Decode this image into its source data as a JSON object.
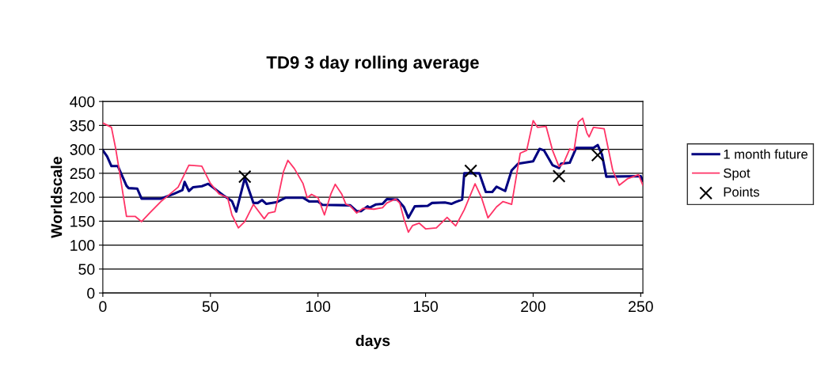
{
  "chart_data": {
    "type": "line",
    "title": "TD9 3 day rolling average",
    "xlabel": "days",
    "ylabel": "Worldscale",
    "xlim": [
      0,
      251
    ],
    "xticks": [
      0,
      50,
      100,
      150,
      200,
      250
    ],
    "ylim": [
      0,
      400
    ],
    "yticks": [
      0,
      50,
      100,
      150,
      200,
      250,
      300,
      350,
      400
    ],
    "grid": "y",
    "legend": "right",
    "series": [
      {
        "name": "1 month future",
        "color": "#000080",
        "x": [
          0,
          2,
          4,
          7,
          11,
          12,
          16,
          18,
          27,
          33,
          37,
          38,
          40,
          42,
          46,
          49,
          51,
          56,
          60,
          62,
          66,
          70,
          72,
          74,
          76,
          81,
          85,
          93,
          96,
          100,
          102,
          115,
          118,
          120,
          123,
          124,
          127,
          130,
          132,
          137,
          140,
          142,
          145,
          151,
          153,
          159,
          162,
          164,
          167,
          168,
          175,
          178,
          181,
          183,
          187,
          190,
          193,
          200,
          203,
          205,
          209,
          212,
          213,
          217,
          220,
          228,
          230,
          232,
          234,
          250,
          251
        ],
        "values": [
          298,
          285,
          265,
          265,
          224,
          219,
          218,
          197,
          197,
          207,
          215,
          232,
          213,
          221,
          223,
          228,
          221,
          204,
          192,
          170,
          240,
          188,
          188,
          194,
          186,
          190,
          199,
          199,
          191,
          191,
          184,
          183,
          171,
          171,
          181,
          178,
          185,
          186,
          196,
          195,
          179,
          157,
          181,
          182,
          188,
          189,
          186,
          190,
          195,
          250,
          250,
          211,
          211,
          222,
          213,
          256,
          270,
          275,
          301,
          298,
          267,
          261,
          270,
          272,
          303,
          303,
          309,
          289,
          243,
          244,
          235
        ]
      },
      {
        "name": "Spot",
        "color": "#ff3366",
        "x": [
          0,
          4,
          6,
          8,
          11,
          15,
          18,
          22,
          27,
          30,
          35,
          40,
          46,
          50,
          54,
          58,
          60,
          63,
          66,
          70,
          75,
          77,
          80,
          81,
          84,
          86,
          89,
          93,
          95,
          97,
          100,
          103,
          106,
          108,
          111,
          113,
          115,
          118,
          121,
          126,
          130,
          132,
          136,
          138,
          140,
          142,
          144,
          147,
          150,
          155,
          160,
          164,
          168,
          173,
          176,
          179,
          183,
          186,
          190,
          192,
          194,
          197,
          200,
          202,
          206,
          209,
          212,
          214,
          217,
          219,
          221,
          223,
          225,
          226,
          228,
          233,
          237,
          240,
          244,
          249,
          251
        ],
        "values": [
          355,
          346,
          301,
          246,
          160,
          160,
          149,
          168,
          191,
          202,
          221,
          267,
          265,
          229,
          207,
          199,
          163,
          136,
          149,
          185,
          155,
          167,
          170,
          190,
          254,
          277,
          260,
          229,
          199,
          206,
          199,
          163,
          207,
          227,
          207,
          185,
          182,
          167,
          177,
          175,
          178,
          188,
          196,
          188,
          154,
          127,
          141,
          146,
          134,
          136,
          158,
          140,
          174,
          228,
          199,
          157,
          180,
          191,
          185,
          239,
          292,
          298,
          360,
          346,
          348,
          298,
          264,
          270,
          301,
          298,
          357,
          365,
          334,
          326,
          346,
          343,
          256,
          225,
          239,
          247,
          225
        ]
      },
      {
        "name": "Points",
        "type": "scatter",
        "color": "#000000",
        "marker": "cross",
        "x": [
          66,
          171,
          212,
          230
        ],
        "values": [
          243,
          255,
          244,
          288
        ]
      }
    ]
  }
}
